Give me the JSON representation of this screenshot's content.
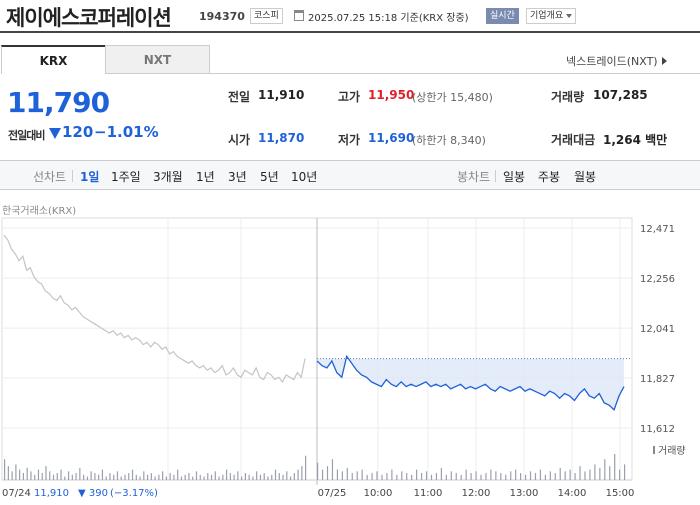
{
  "header": {
    "stock_name": "제이에스코퍼레이션",
    "stock_code": "194370",
    "market_badge": "코스피",
    "timestamp": "2025.07.25 15:18 기준(KRX 장중)",
    "realtime_badge": "실시간",
    "company_badge": "기업개요"
  },
  "tabs": {
    "krx": "KRX",
    "nxt": "NXT",
    "nxt_link": "넥스트레이드(NXT)"
  },
  "price": {
    "current": "11,790",
    "change_label": "전일대비",
    "change": "120",
    "change_pct": "−1.01%"
  },
  "stats": {
    "prev_label": "전일",
    "prev": "11,910",
    "high_label": "고가",
    "high": "11,950",
    "upper_limit": "(상한가 15,480)",
    "volume_label": "거래량",
    "volume": "107,285",
    "open_label": "시가",
    "open": "11,870",
    "low_label": "저가",
    "low": "11,690",
    "lower_limit": "(하한가 8,340)",
    "amount_label": "거래대금",
    "amount": "1,264 백만"
  },
  "period_bar": {
    "line_label": "선차트",
    "line_items": [
      "1일",
      "1주일",
      "3개월",
      "1년",
      "3년",
      "5년",
      "10년"
    ],
    "active": "1일",
    "candle_label": "봉차트",
    "candle_items": [
      "일봉",
      "주봉",
      "월봉"
    ]
  },
  "colors": {
    "down": "#1e61d8",
    "up": "#e0202a",
    "prev_day_line": "#c4c4c4",
    "area_fill": "#dde6f7",
    "volume_bar": "#9aa0ab"
  },
  "chart_data": {
    "type": "line",
    "source_label": "한국거래소(KRX)",
    "y_ticks": [
      "12,471",
      "12,256",
      "12,041",
      "11,827",
      "11,612"
    ],
    "ylim": [
      11612,
      12471
    ],
    "x_ticks": [
      "07/25",
      "10:00",
      "11:00",
      "12:00",
      "13:00",
      "14:00",
      "15:00"
    ],
    "volume_label": "거래량",
    "prev_day_footer": {
      "date": "07/24",
      "close": "11,910",
      "change": "▼ 390",
      "pct": "(−3.17%)"
    },
    "reference_price": 11910,
    "series": [
      {
        "session": "07/24",
        "values": [
          12440,
          12420,
          12380,
          12360,
          12330,
          12350,
          12290,
          12300,
          12260,
          12240,
          12230,
          12200,
          12190,
          12170,
          12160,
          12180,
          12150,
          12140,
          12120,
          12130,
          12110,
          12090,
          12080,
          12070,
          12060,
          12050,
          12040,
          12030,
          12020,
          12030,
          12010,
          12020,
          12000,
          12010,
          11990,
          12000,
          11990,
          11970,
          11980,
          11960,
          11980,
          11970,
          11950,
          11960,
          11930,
          11940,
          11920,
          11910,
          11900,
          11890,
          11900,
          11880,
          11870,
          11880,
          11860,
          11870,
          11850,
          11860,
          11880,
          11840,
          11850,
          11870,
          11840,
          11830,
          11860,
          11850,
          11840,
          11870,
          11830,
          11820,
          11850,
          11840,
          11820,
          11830,
          11810,
          11840,
          11830,
          11820,
          11850,
          11830,
          11910
        ]
      },
      {
        "session": "07/25",
        "values": [
          11900,
          11880,
          11870,
          11900,
          11850,
          11830,
          11920,
          11890,
          11860,
          11840,
          11830,
          11810,
          11800,
          11790,
          11820,
          11800,
          11790,
          11810,
          11790,
          11800,
          11790,
          11800,
          11810,
          11790,
          11800,
          11790,
          11800,
          11780,
          11790,
          11800,
          11780,
          11790,
          11780,
          11790,
          11800,
          11780,
          11770,
          11790,
          11780,
          11770,
          11780,
          11790,
          11770,
          11780,
          11770,
          11760,
          11750,
          11770,
          11760,
          11740,
          11760,
          11750,
          11730,
          11760,
          11780,
          11750,
          11740,
          11760,
          11720,
          11710,
          11690,
          11750,
          11790
        ]
      }
    ],
    "volume": [
      12,
      8,
      5,
      9,
      6,
      4,
      7,
      5,
      3,
      6,
      4,
      8,
      5,
      3,
      4,
      6,
      2,
      5,
      3,
      4,
      7,
      3,
      2,
      5,
      4,
      3,
      6,
      2,
      4,
      3,
      5,
      2,
      3,
      4,
      6,
      3,
      2,
      5,
      3,
      4,
      2,
      3,
      5,
      2,
      4,
      3,
      6,
      2,
      3,
      4,
      2,
      5,
      3,
      2,
      4,
      3,
      5,
      2,
      3,
      6,
      4,
      3,
      5,
      2,
      4,
      3,
      2,
      5,
      3,
      4,
      2,
      3,
      6,
      4,
      3,
      5,
      2,
      4,
      6,
      8,
      14,
      10,
      6,
      8,
      12,
      6,
      5,
      7,
      4,
      5,
      6,
      3,
      4,
      5,
      3,
      4,
      6,
      3,
      5,
      4,
      3,
      6,
      4,
      5,
      3,
      4,
      7,
      3,
      5,
      4,
      3,
      6,
      4,
      5,
      3,
      4,
      6,
      5,
      4,
      3,
      5,
      6,
      4,
      3,
      5,
      4,
      6,
      3,
      5,
      4,
      7,
      5,
      6,
      4,
      8,
      5,
      6,
      9,
      7,
      12,
      8,
      15,
      6,
      9
    ]
  }
}
